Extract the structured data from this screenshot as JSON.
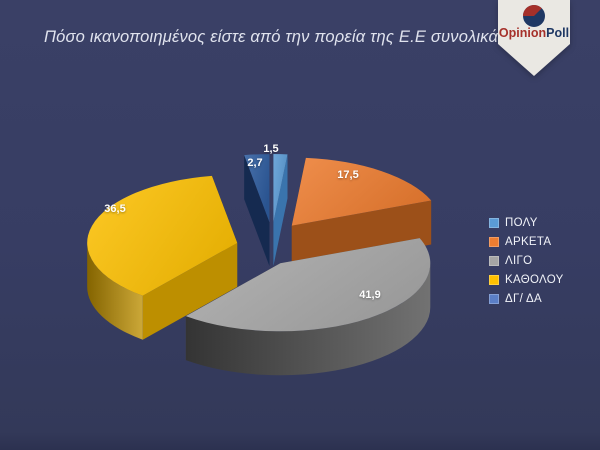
{
  "header": {
    "title": "Πόσο ικανοποιημένος είστε από την πορεία της Ε.Ε συνολικά;",
    "logo": {
      "brand_primary": "Opinion",
      "brand_secondary": "Poll",
      "primary_color": "#a5302a",
      "secondary_color": "#1f3864",
      "flag_color": "#eae8e3"
    }
  },
  "chart_data": {
    "type": "pie",
    "style": "3d-exploded",
    "title": "Πόσο ικανοποιημένος είστε από την πορεία της Ε.Ε συνολικά;",
    "unit": "percent",
    "legend_position": "right",
    "background": "#383e63",
    "label_color": "#ffffff",
    "slices": [
      {
        "label": "ΠΟΛΥ",
        "value": 1.5,
        "value_label": "1,5",
        "color": "#5b9bd5",
        "legend_color": "#5b9bd5"
      },
      {
        "label": "ΑΡΚΕΤΑ",
        "value": 17.5,
        "value_label": "17,5",
        "color": "#ed7d31",
        "legend_color": "#ed7d31"
      },
      {
        "label": "ΛΙΓΟ",
        "value": 41.9,
        "value_label": "41,9",
        "color": "#a9a9a9",
        "legend_color": "#a5a5a5"
      },
      {
        "label": "ΚΑΘΟΛΟΥ",
        "value": 36.5,
        "value_label": "36,5",
        "color": "#fdc106",
        "legend_color": "#ffc000"
      },
      {
        "label": "ΔΓ/ ΔΑ",
        "value": 2.7,
        "value_label": "2,7",
        "color": "#2e5c9e",
        "legend_color": "#5b7fc7"
      }
    ]
  }
}
